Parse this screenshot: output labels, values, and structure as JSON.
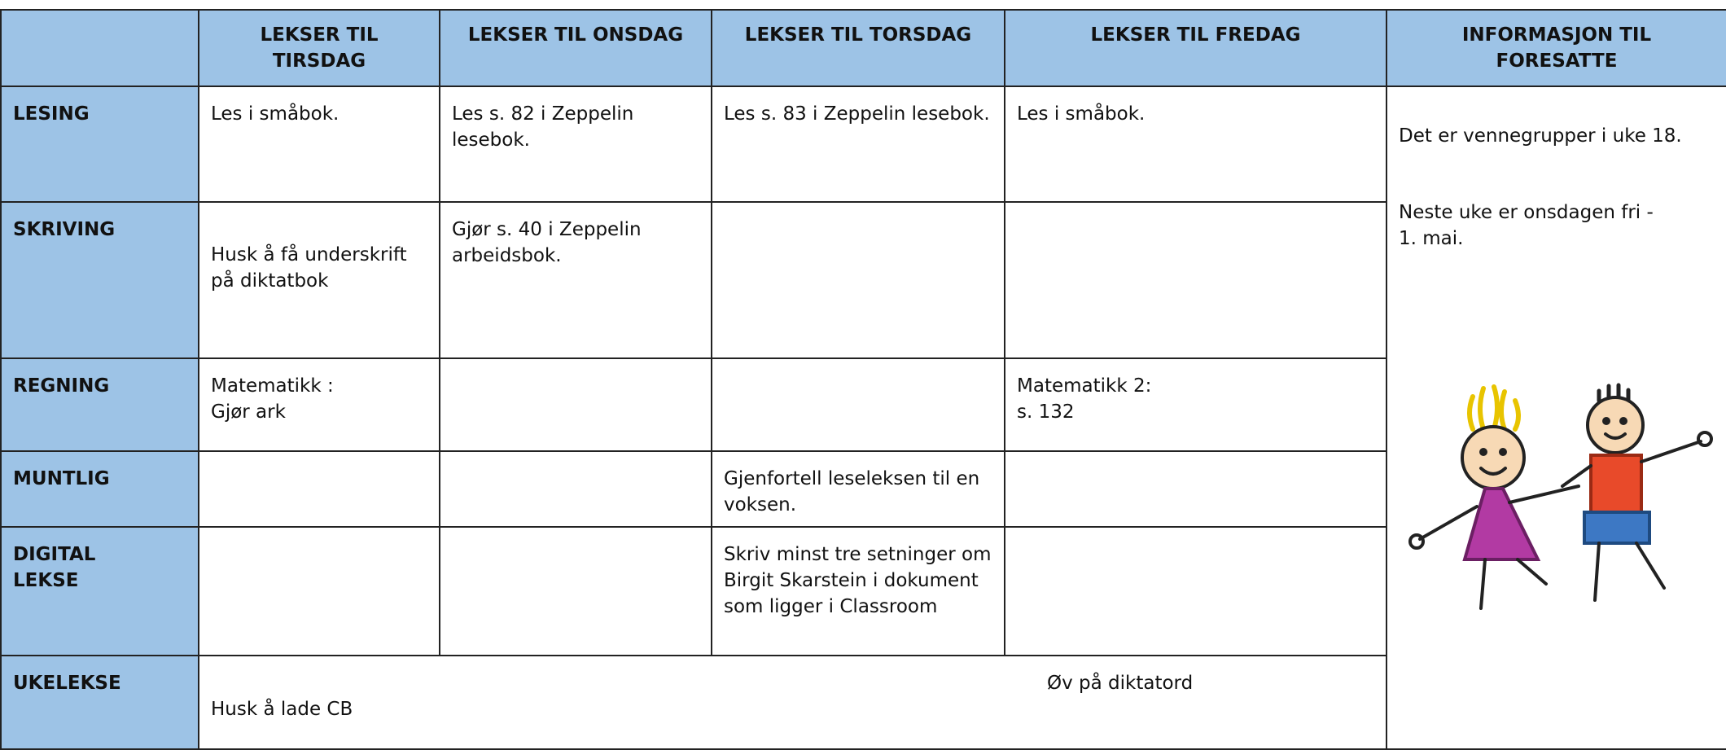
{
  "table": {
    "header": [
      "LEKSER TIL\nTIRSDAG",
      "LEKSER TIL ONSDAG",
      "LEKSER TIL TORSDAG",
      "LEKSER TIL FREDAG",
      "INFORMASJON TIL\nFORESATTE"
    ],
    "rows": [
      {
        "label": "LESING",
        "cells": [
          "Les i småbok.",
          "Les s. 82 i Zeppelin lesebok.",
          "Les s. 83 i Zeppelin lesebok.",
          "Les i småbok."
        ]
      },
      {
        "label": "SKRIVING",
        "cells": [
          "Husk å få underskrift på diktatbok",
          "Gjør s. 40 i Zeppelin arbeidsbok.",
          null,
          null
        ]
      },
      {
        "label": "REGNING",
        "cells": [
          "Matematikk :\nGjør ark",
          null,
          null,
          "Matematikk 2:\ns. 132"
        ]
      },
      {
        "label": "MUNTLIG",
        "cells": [
          null,
          null,
          "Gjenfortell leseleksen til en voksen.",
          null
        ]
      },
      {
        "label": "DIGITAL\nLEKSE",
        "cells": [
          null,
          null,
          "Skriv minst tre setninger om Birgit Skarstein i dokument som ligger i Classroom",
          null
        ]
      },
      {
        "label": "UKELEKSE",
        "cells": [
          "Husk å lade CB",
          "Øv på diktatord"
        ]
      }
    ]
  },
  "info": {
    "paragraphs": [
      "Det er vennegrupper i uke 18.",
      "Neste uke er onsdagen fri -\n 1. mai."
    ]
  }
}
